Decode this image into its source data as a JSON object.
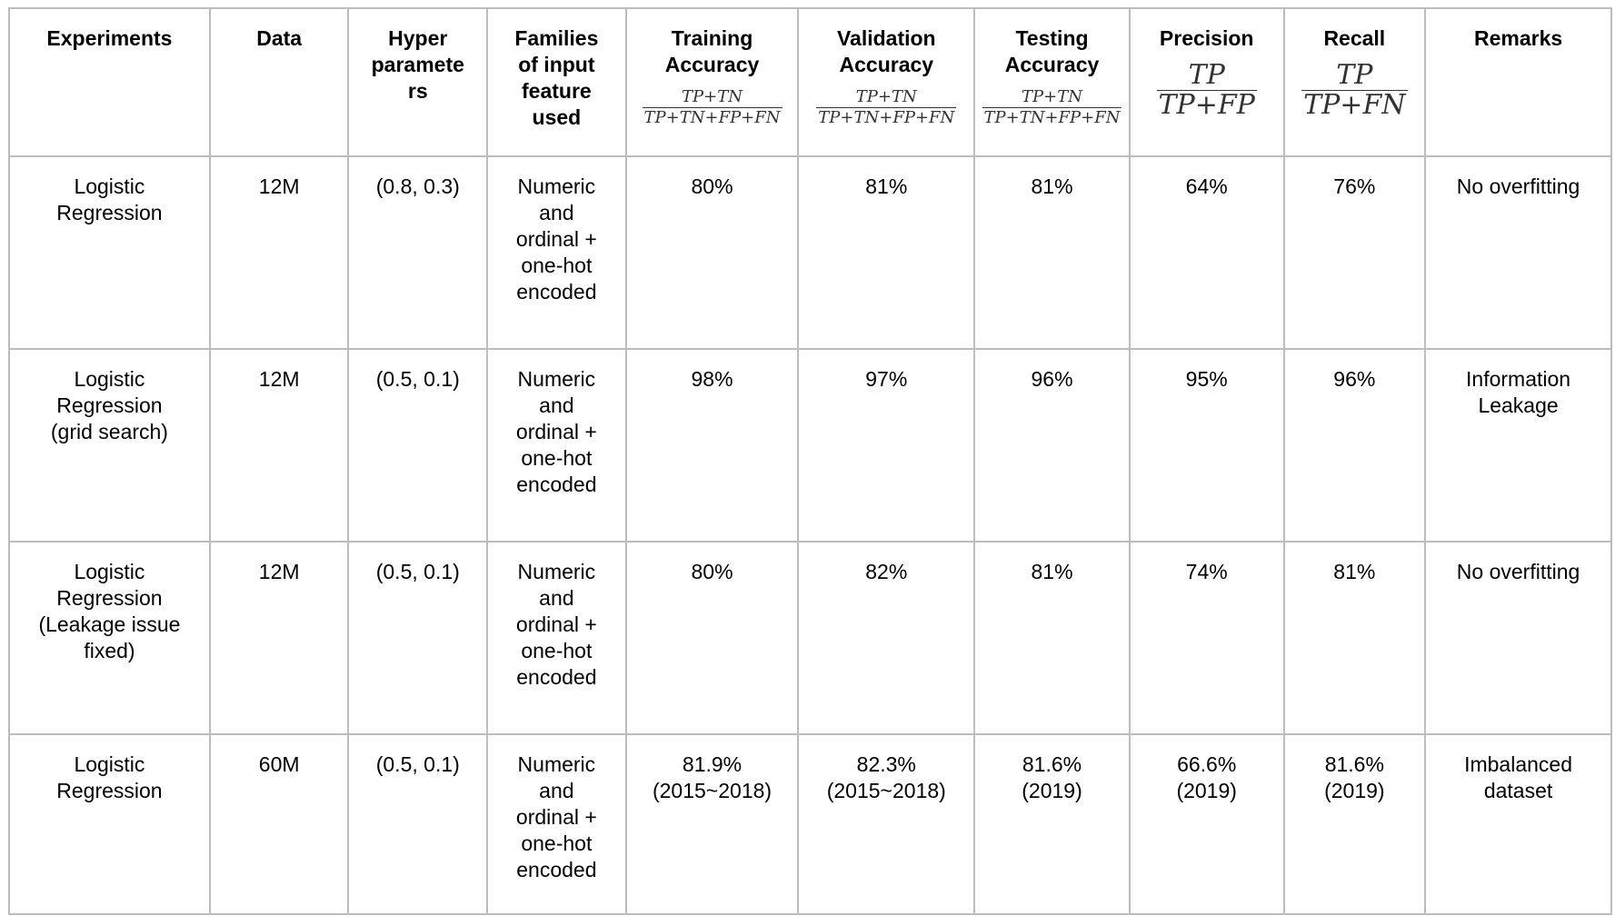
{
  "headers": {
    "experiments": "Experiments",
    "data": "Data",
    "hyperparameters": "Hyper\nparamete\nrs",
    "families": "Families\nof input\nfeature\nused",
    "training": "Training\nAccuracy",
    "validation": "Validation\nAccuracy",
    "testing": "Testing\nAccuracy",
    "precision": "Precision",
    "recall": "Recall",
    "remarks": "Remarks"
  },
  "formulas": {
    "accuracy_num": "TP+TN",
    "accuracy_den": "TP+TN+FP+FN",
    "precision_num": "TP",
    "precision_den": "TP+FP",
    "recall_num": "TP",
    "recall_den": "TP+FN"
  },
  "rows": [
    {
      "experiment": "Logistic\nRegression",
      "data": "12M",
      "hyperparameters": "(0.8, 0.3)",
      "families": "Numeric\nand\nordinal +\none-hot\nencoded",
      "training": "80%",
      "validation": "81%",
      "testing": "81%",
      "precision": "64%",
      "recall": "76%",
      "remarks": "No overfitting"
    },
    {
      "experiment": "Logistic\nRegression\n(grid search)",
      "data": "12M",
      "hyperparameters": "(0.5,  0.1)",
      "families": "Numeric\nand\nordinal +\none-hot\nencoded",
      "training": "98%",
      "validation": "97%",
      "testing": "96%",
      "precision": "95%",
      "recall": "96%",
      "remarks": "Information\nLeakage"
    },
    {
      "experiment": "Logistic\nRegression\n(Leakage issue\nfixed)",
      "data": "12M",
      "hyperparameters": "(0.5,  0.1)",
      "families": "Numeric\nand\nordinal +\none-hot\nencoded",
      "training": "80%",
      "validation": "82%",
      "testing": "81%",
      "precision": "74%",
      "recall": "81%",
      "remarks": "No overfitting"
    },
    {
      "experiment": "Logistic\nRegression",
      "data": "60M",
      "hyperparameters": "(0.5,  0.1)",
      "families": "Numeric\nand\nordinal +\none-hot\nencoded",
      "training": "81.9%\n(2015~2018)",
      "validation": "82.3%\n(2015~2018)",
      "testing": "81.6%\n(2019)",
      "precision": "66.6%\n(2019)",
      "recall": "81.6%\n(2019)",
      "remarks": "Imbalanced\ndataset"
    }
  ]
}
